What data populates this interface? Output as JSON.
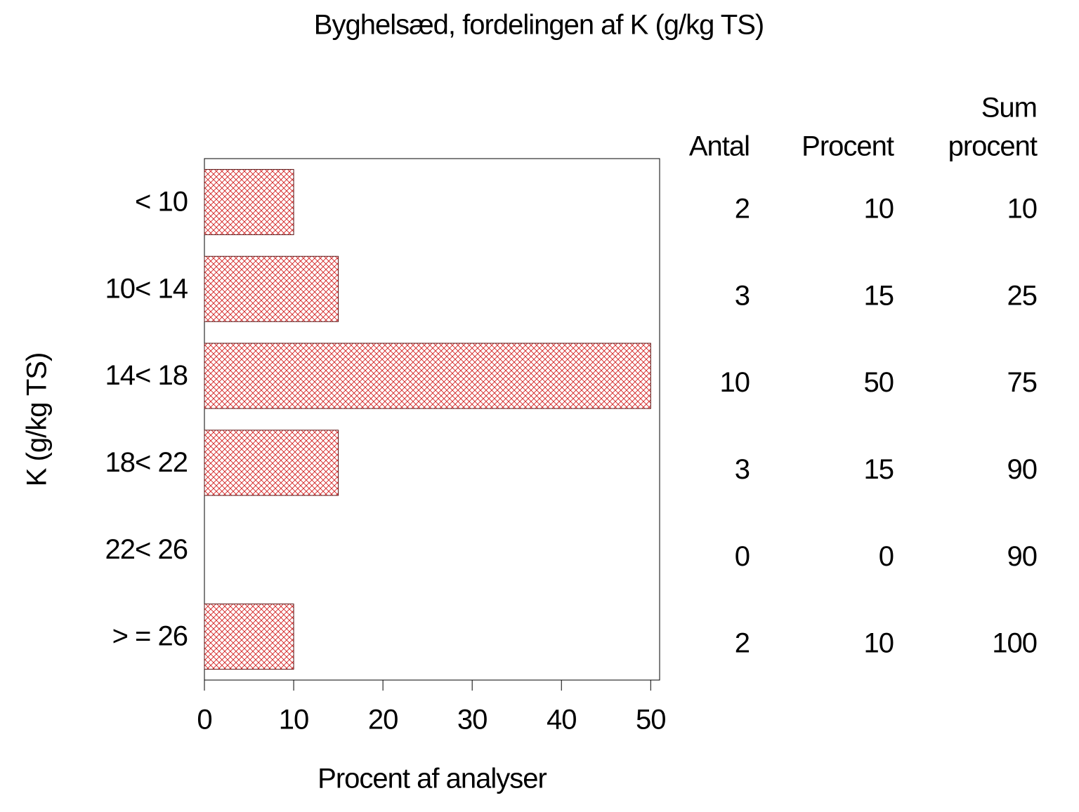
{
  "chart_data": {
    "type": "hbar",
    "title": "Byghelsæd, fordelingen af K (g/kg TS)",
    "xlabel": "Procent af analyser",
    "ylabel": "K (g/kg TS)",
    "categories": [
      "< 10",
      "10< 14",
      "14< 18",
      "18< 22",
      "22< 26",
      "> = 26"
    ],
    "values": [
      10,
      15,
      50,
      15,
      0,
      10
    ],
    "color": "#d22020",
    "xlim": [
      0,
      51
    ],
    "xticks": [
      0,
      10,
      20,
      30,
      40,
      50
    ],
    "table": {
      "headers": [
        [
          "Antal"
        ],
        [
          "Procent"
        ],
        [
          "Sum",
          "procent"
        ]
      ],
      "columns": [
        [
          2,
          3,
          10,
          3,
          0,
          2
        ],
        [
          10,
          15,
          50,
          15,
          0,
          10
        ],
        [
          10,
          25,
          75,
          90,
          90,
          100
        ]
      ]
    }
  }
}
